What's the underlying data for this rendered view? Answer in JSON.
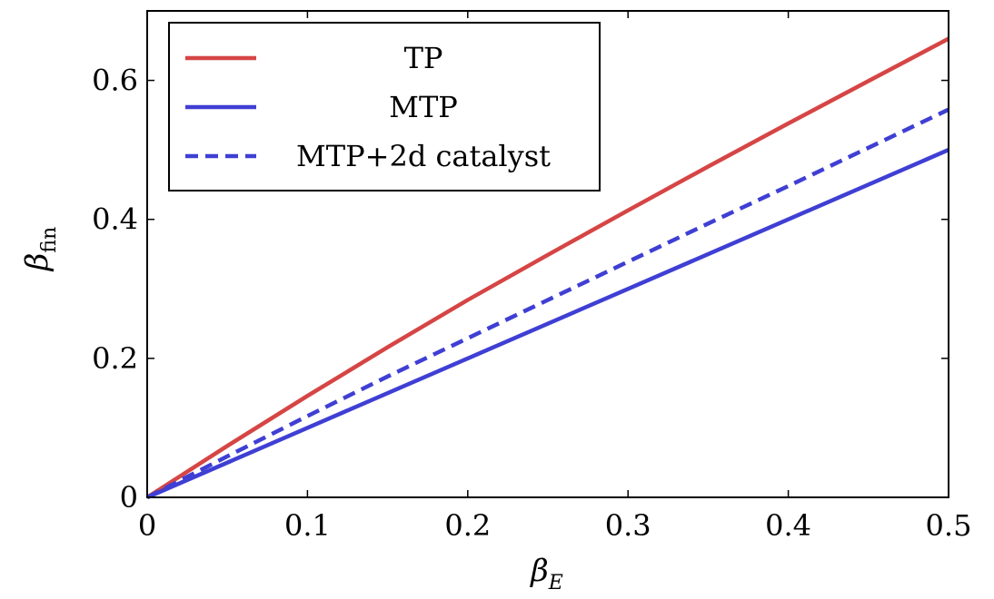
{
  "chart_data": {
    "type": "line",
    "xlabel": {
      "main": "β",
      "sub": "E"
    },
    "ylabel": {
      "main": "β",
      "sub": "fin"
    },
    "xlim": [
      0,
      0.5
    ],
    "ylim": [
      0,
      0.7
    ],
    "xticks": [
      0,
      0.1,
      0.2,
      0.3,
      0.4,
      0.5
    ],
    "xtick_labels": [
      "0",
      "0.1",
      "0.2",
      "0.3",
      "0.4",
      "0.5"
    ],
    "yticks": [
      0,
      0.2,
      0.4,
      0.6
    ],
    "ytick_labels": [
      "0",
      "0.2",
      "0.4",
      "0.6"
    ],
    "legend_position": "top-left",
    "grid": false,
    "series": [
      {
        "name": "TP",
        "color": "#d64545",
        "style": "solid",
        "x": [
          0,
          0.05,
          0.1,
          0.15,
          0.2,
          0.25,
          0.3,
          0.35,
          0.4,
          0.45,
          0.5
        ],
        "y": [
          0,
          0.074,
          0.146,
          0.216,
          0.284,
          0.349,
          0.413,
          0.476,
          0.538,
          0.599,
          0.66
        ]
      },
      {
        "name": "MTP",
        "color": "#3f3fd4",
        "style": "solid",
        "x": [
          0,
          0.1,
          0.2,
          0.3,
          0.4,
          0.5
        ],
        "y": [
          0,
          0.1,
          0.2,
          0.3,
          0.4,
          0.5
        ]
      },
      {
        "name": "MTP+2d catalyst",
        "color": "#3f3fd4",
        "style": "dashed",
        "x": [
          0,
          0.05,
          0.1,
          0.15,
          0.2,
          0.25,
          0.3,
          0.35,
          0.4,
          0.45,
          0.5
        ],
        "y": [
          0,
          0.059,
          0.117,
          0.174,
          0.229,
          0.284,
          0.339,
          0.394,
          0.448,
          0.503,
          0.558
        ]
      }
    ]
  }
}
